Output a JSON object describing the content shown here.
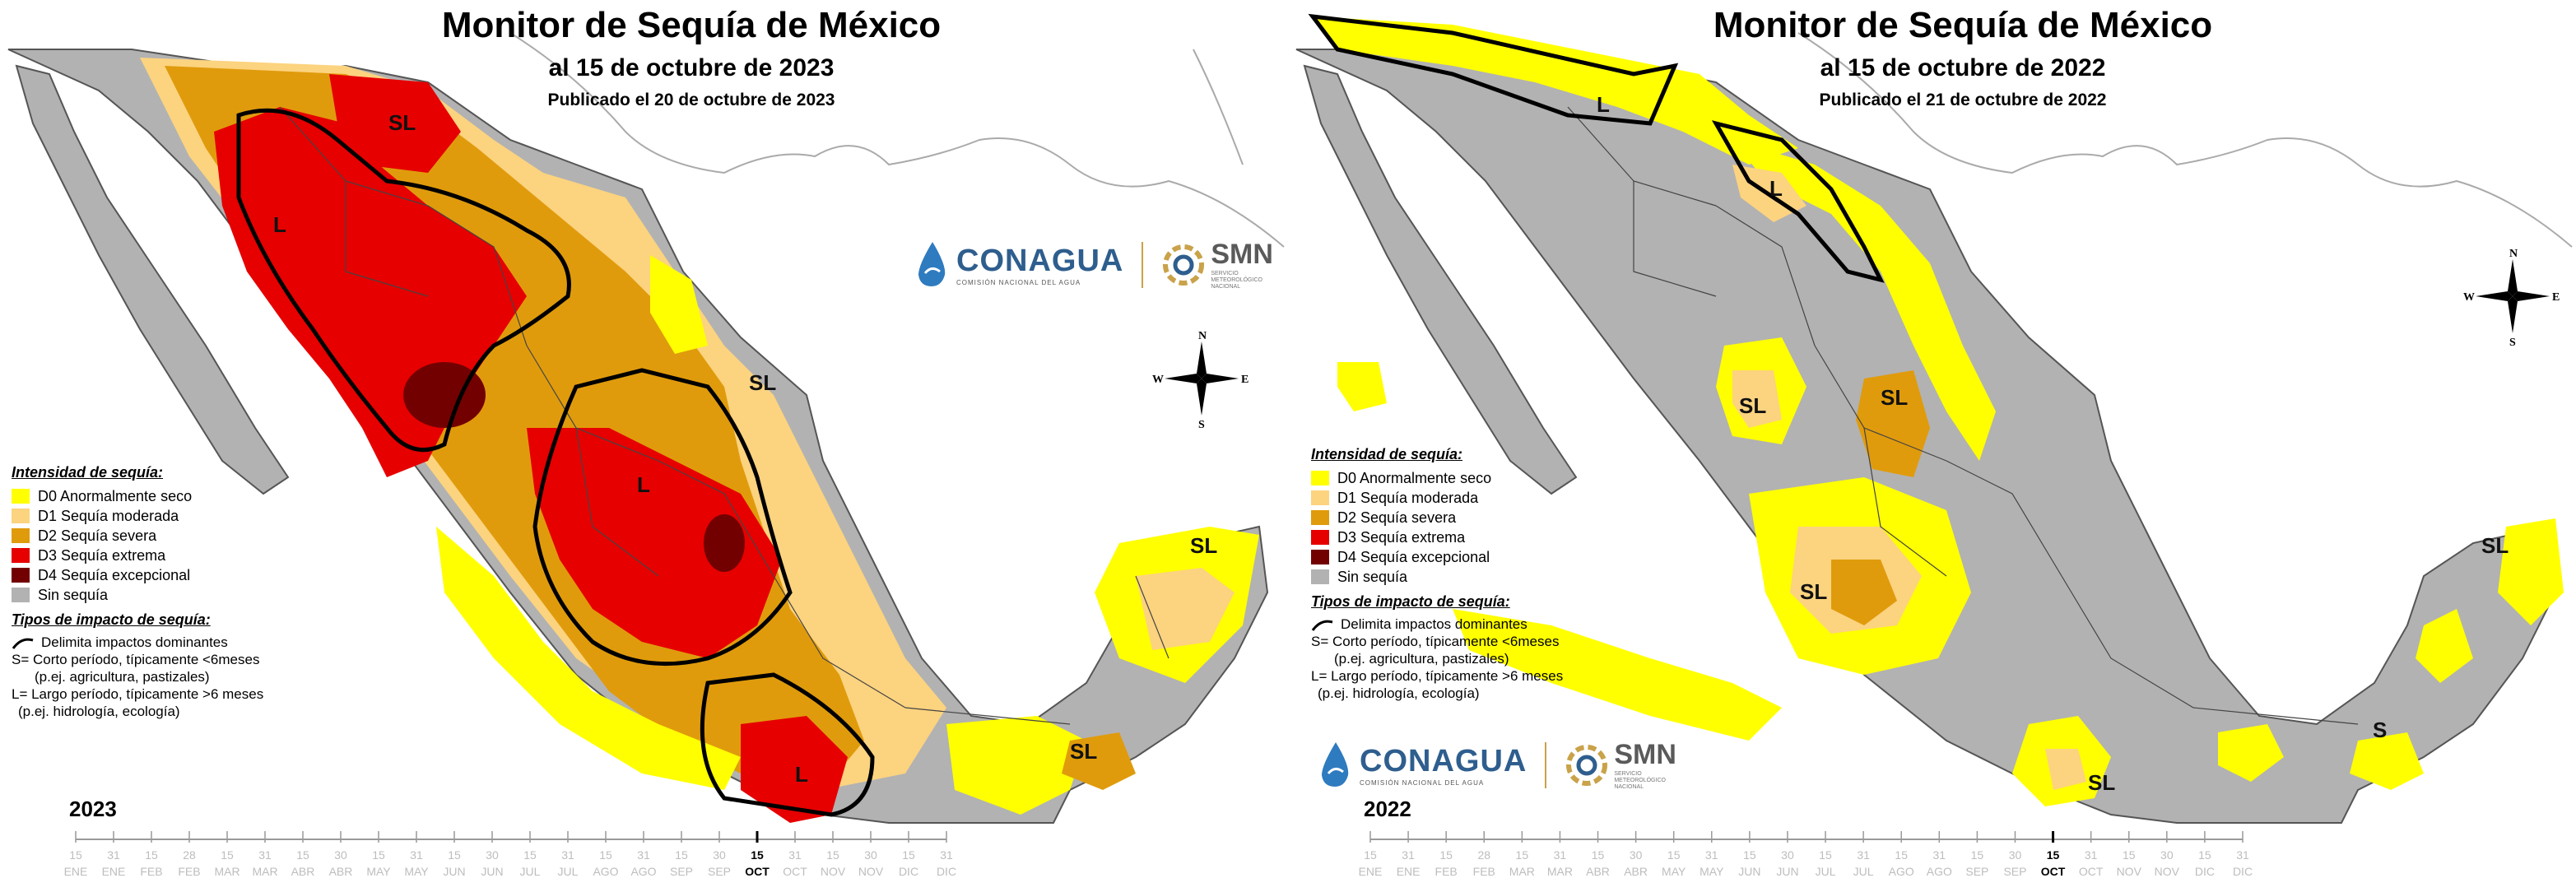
{
  "panels": [
    {
      "title": "Monitor de Sequía de México",
      "subtitle": "al 15 de octubre de 2023",
      "published": "Publicado el 20 de octubre de 2023",
      "year": "2023",
      "labels": [
        "SL",
        "L",
        "SL",
        "L",
        "SL",
        "L",
        "SL"
      ]
    },
    {
      "title": "Monitor de Sequía de México",
      "subtitle": "al 15 de octubre de 2022",
      "published": "Publicado el 21 de octubre de 2022",
      "year": "2022",
      "labels": [
        "L",
        "L",
        "SL",
        "SL",
        "SL",
        "SL",
        "S",
        "SL"
      ]
    }
  ],
  "legend": {
    "intensity_title": "Intensidad de sequía:",
    "categories": [
      {
        "code": "D0",
        "label": "D0 Anormalmente seco",
        "color": "#ffff00"
      },
      {
        "code": "D1",
        "label": "D1 Sequía moderada",
        "color": "#fcd37f"
      },
      {
        "code": "D2",
        "label": "D2 Sequía severa",
        "color": "#e09b0c"
      },
      {
        "code": "D3",
        "label": "D3 Sequía extrema",
        "color": "#e60000"
      },
      {
        "code": "D4",
        "label": "D4 Sequía excepcional",
        "color": "#730000"
      },
      {
        "code": "none",
        "label": "Sin sequía",
        "color": "#b2b2b2"
      }
    ],
    "impact_title": "Tipos de impacto de sequía:",
    "impact_line": "Delimita impactos dominantes",
    "short_term": "S= Corto período, típicamente <6meses",
    "short_term_ex": "(p.ej. agricultura, pastizales)",
    "long_term": "L= Largo período, típicamente >6 meses",
    "long_term_ex": "(p.ej. hidrología, ecología)"
  },
  "logos": {
    "conagua": "CONAGUA",
    "conagua_sub": "COMISIÓN NACIONAL DEL AGUA",
    "smn": "SMN",
    "smn_sub": "SERVICIO METEOROLÓGICO NACIONAL"
  },
  "compass": {
    "n": "N",
    "s": "S",
    "e": "E",
    "w": "W"
  },
  "timeline": {
    "days": [
      "15",
      "31",
      "15",
      "28",
      "15",
      "31",
      "15",
      "30",
      "15",
      "31",
      "15",
      "30",
      "15",
      "31",
      "15",
      "31",
      "15",
      "30",
      "15",
      "31",
      "15",
      "30",
      "15",
      "31"
    ],
    "months": [
      "ENE",
      "ENE",
      "FEB",
      "FEB",
      "MAR",
      "MAR",
      "ABR",
      "ABR",
      "MAY",
      "MAY",
      "JUN",
      "JUN",
      "JUL",
      "JUL",
      "AGO",
      "AGO",
      "SEP",
      "SEP",
      "OCT",
      "OCT",
      "NOV",
      "NOV",
      "DIC",
      "DIC"
    ],
    "current_day": "15",
    "current_month": "OCT"
  },
  "colors": {
    "D0": "#ffff00",
    "D1": "#fcd37f",
    "D2": "#e09b0c",
    "D3": "#e60000",
    "D4": "#730000",
    "none": "#b2b2b2",
    "water": "#ffffff",
    "border": "#000000"
  }
}
